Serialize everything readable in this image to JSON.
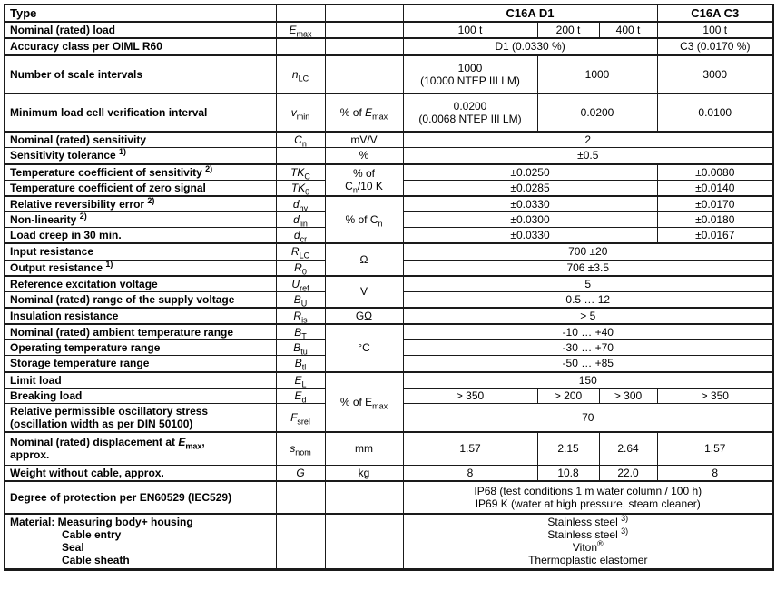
{
  "colors": {
    "border": "#1a1a1a",
    "text": "#000000",
    "background": "#ffffff"
  },
  "table": {
    "header": {
      "type_label": "Type",
      "models": [
        {
          "t": "C16A D1",
          "span": 3
        },
        {
          "t": "C16A C3",
          "span": 1
        }
      ]
    },
    "rows": [
      {
        "name": "nominal-load",
        "thick": true,
        "label": "Nominal (rated) load",
        "symbol": "*E*~max~",
        "unit": {
          "t": ""
        },
        "values": [
          {
            "t": "100 t",
            "span": 1
          },
          {
            "t": "200 t",
            "span": 1
          },
          {
            "t": "400 t",
            "span": 1
          },
          {
            "t": "100 t",
            "span": 1
          }
        ]
      },
      {
        "name": "accuracy-class",
        "thick": true,
        "label": "Accuracy class per OIML R60",
        "symbol": "",
        "unit": {
          "t": ""
        },
        "values": [
          {
            "t": "D1 (0.0330 %)",
            "span": 3
          },
          {
            "t": "C3 (0.0170 %)",
            "span": 1
          }
        ]
      },
      {
        "name": "scale-intervals",
        "thick": true,
        "tall": true,
        "label": "Number of scale intervals",
        "symbol": "*n*~LC~",
        "unit": {
          "t": ""
        },
        "values": [
          {
            "t": "1000\n(10000 NTEP III LM)",
            "span": 1
          },
          {
            "t": "1000",
            "span": 2
          },
          {
            "t": "3000",
            "span": 1
          }
        ]
      },
      {
        "name": "min-verification-interval",
        "thick": true,
        "tall": true,
        "label": "Minimum load cell verification interval",
        "symbol": "*v*~min~",
        "unit": {
          "t": "% of *E*~max~"
        },
        "values": [
          {
            "t": "0.0200\n(0.0068 NTEP III LM)",
            "span": 1
          },
          {
            "t": "0.0200",
            "span": 2
          },
          {
            "t": "0.0100",
            "span": 1
          }
        ]
      },
      {
        "name": "nominal-sensitivity",
        "thick": true,
        "label": "Nominal (rated) sensitivity",
        "symbol": "*C*~n~",
        "unit": {
          "t": "mV/V"
        },
        "values": [
          {
            "t": "2",
            "span": 4
          }
        ]
      },
      {
        "name": "sensitivity-tolerance",
        "thick": false,
        "label": "Sensitivity tolerance ^1)^",
        "symbol": "",
        "unit": {
          "t": "%"
        },
        "values": [
          {
            "t": "±0.5",
            "span": 4
          }
        ]
      },
      {
        "name": "temp-coeff-sensitivity",
        "thick": true,
        "label": "Temperature coefficient of sensitivity ^2)^",
        "symbol": "*TK*~C~",
        "unit": {
          "t": "% of\nC~n~/10 K",
          "rows": 2
        },
        "values": [
          {
            "t": "±0.0250",
            "span": 3
          },
          {
            "t": "±0.0080",
            "span": 1
          }
        ]
      },
      {
        "name": "temp-coeff-zero",
        "thick": false,
        "label": "Temperature coefficient of zero signal",
        "symbol": "*TK*~0~",
        "unit": "covered",
        "values": [
          {
            "t": "±0.0285",
            "span": 3
          },
          {
            "t": "±0.0140",
            "span": 1
          }
        ]
      },
      {
        "name": "reversibility-error",
        "thick": true,
        "label": "Relative reversibility error ^2)^",
        "symbol": "*d*~hy~",
        "unit": {
          "t": "% of C~n~",
          "rows": 3
        },
        "values": [
          {
            "t": "±0.0330",
            "span": 3
          },
          {
            "t": "±0.0170",
            "span": 1
          }
        ]
      },
      {
        "name": "non-linearity",
        "thick": false,
        "label": "Non-linearity ^2)^",
        "symbol": "*d*~lin~",
        "unit": "covered",
        "values": [
          {
            "t": "±0.0300",
            "span": 3
          },
          {
            "t": "±0.0180",
            "span": 1
          }
        ]
      },
      {
        "name": "load-creep",
        "thick": false,
        "label": "Load creep in 30 min.",
        "symbol": "*d*~cr~",
        "unit": "covered",
        "values": [
          {
            "t": "±0.0330",
            "span": 3
          },
          {
            "t": "±0.0167",
            "span": 1
          }
        ]
      },
      {
        "name": "input-resistance",
        "thick": true,
        "label": "Input resistance",
        "symbol": "*R*~LC~",
        "unit": {
          "t": "Ω",
          "rows": 2
        },
        "values": [
          {
            "t": "700 ±20",
            "span": 4
          }
        ]
      },
      {
        "name": "output-resistance",
        "thick": false,
        "label": "Output resistance ^1)^",
        "symbol": "*R*~0~",
        "unit": "covered",
        "values": [
          {
            "t": "706 ±3.5",
            "span": 4
          }
        ]
      },
      {
        "name": "reference-excitation-voltage",
        "thick": true,
        "label": "Reference excitation voltage",
        "symbol": "*U*~ref~",
        "unit": {
          "t": "V",
          "rows": 2
        },
        "values": [
          {
            "t": "5",
            "span": 4
          }
        ]
      },
      {
        "name": "supply-voltage-range",
        "thick": false,
        "label": "Nominal (rated) range of the supply voltage",
        "symbol": "*B*~U~",
        "unit": "covered",
        "values": [
          {
            "t": "0.5 … 12",
            "span": 4
          }
        ]
      },
      {
        "name": "insulation-resistance",
        "thick": true,
        "label": "Insulation resistance",
        "symbol": "*R*~is~",
        "unit": {
          "t": "GΩ"
        },
        "values": [
          {
            "t": "> 5",
            "span": 4
          }
        ]
      },
      {
        "name": "ambient-temp-range",
        "thick": true,
        "label": "Nominal (rated) ambient temperature range",
        "symbol": "*B*~T~",
        "unit": {
          "t": "°C",
          "rows": 3
        },
        "values": [
          {
            "t": "-10 … +40",
            "span": 4
          }
        ]
      },
      {
        "name": "operating-temp-range",
        "thick": false,
        "label": "Operating temperature range",
        "symbol": "*B*~tu~",
        "unit": "covered",
        "values": [
          {
            "t": "-30 … +70",
            "span": 4
          }
        ]
      },
      {
        "name": "storage-temp-range",
        "thick": false,
        "label": "Storage temperature range",
        "symbol": "*B*~tl~",
        "unit": "covered",
        "values": [
          {
            "t": "-50 … +85",
            "span": 4
          }
        ]
      },
      {
        "name": "limit-load",
        "thick": true,
        "label": "Limit load",
        "symbol": "*E*~L~",
        "unit": {
          "t": "% of E~max~",
          "rows": 3
        },
        "values": [
          {
            "t": "150",
            "span": 4
          }
        ]
      },
      {
        "name": "breaking-load",
        "thick": false,
        "label": "Breaking load",
        "symbol": "*E*~d~",
        "unit": "covered",
        "values": [
          {
            "t": "> 350",
            "span": 1
          },
          {
            "t": "> 200",
            "span": 1
          },
          {
            "t": "> 300",
            "span": 1
          },
          {
            "t": "> 350",
            "span": 1
          }
        ]
      },
      {
        "name": "oscillatory-stress",
        "thick": false,
        "label": "Relative permissible oscillatory stress\n(oscillation width as per DIN 50100)",
        "symbol": "*F*~srel~",
        "unit": "covered",
        "values": [
          {
            "t": "70",
            "span": 4
          }
        ]
      },
      {
        "name": "nominal-displacement",
        "thick": true,
        "pad2": true,
        "label": "Nominal (rated) displacement at *E*~max~,\napprox.",
        "symbol": "*s*~nom~",
        "unit": {
          "t": "mm"
        },
        "values": [
          {
            "t": "1.57",
            "span": 1
          },
          {
            "t": "2.15",
            "span": 1
          },
          {
            "t": "2.64",
            "span": 1
          },
          {
            "t": "1.57",
            "span": 1
          }
        ]
      },
      {
        "name": "weight",
        "thick": false,
        "label": "Weight without cable, approx.",
        "symbol": "*G*",
        "unit": {
          "t": "kg"
        },
        "values": [
          {
            "t": "8",
            "span": 1
          },
          {
            "t": "10.8",
            "span": 1
          },
          {
            "t": "22.0",
            "span": 1
          },
          {
            "t": "8",
            "span": 1
          }
        ]
      },
      {
        "name": "degree-of-protection",
        "thick": true,
        "pad2": true,
        "label": "Degree of protection per EN60529 (IEC529)",
        "symbol": "",
        "unit": {
          "t": ""
        },
        "values": [
          {
            "t": "IP68 (test conditions 1 m water column / 100 h)\nIP69 K (water at high pressure, steam cleaner)",
            "span": 4
          }
        ]
      },
      {
        "name": "material",
        "thick": true,
        "indentLabel": true,
        "label": "Material:  Measuring body+ housing\nCable entry\nSeal\nCable sheath",
        "symbol": "",
        "unit": {
          "t": ""
        },
        "values": [
          {
            "t": "Stainless steel ^3)^\nStainless steel ^3)^\nViton^®^\nThermoplastic elastomer",
            "span": 4
          }
        ]
      }
    ]
  }
}
